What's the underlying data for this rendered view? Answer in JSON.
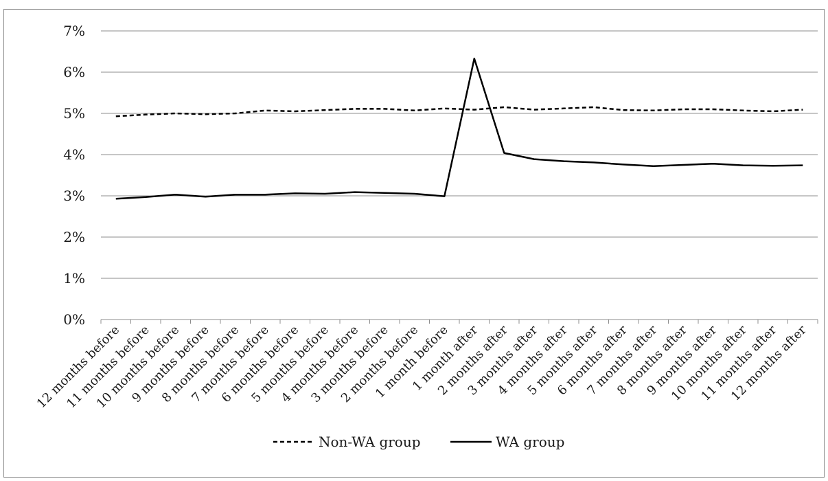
{
  "chart_data": {
    "type": "line",
    "categories": [
      "12 months before",
      "11 months before",
      "10 months before",
      "9 months before",
      "8 months before",
      "7 months before",
      "6 months before",
      "5 months before",
      "4 months before",
      "3 months before",
      "2 months before",
      "1 month before",
      "1 month after",
      "2 months after",
      "3 months after",
      "4 months after",
      "5 months after",
      "6 months after",
      "7 months after",
      "8 months after",
      "9 months after",
      "10 months after",
      "11 months after",
      "12 months after"
    ],
    "series": [
      {
        "name": "Non-WA group",
        "style": "dashed",
        "color": "#000000",
        "values": [
          4.93,
          4.97,
          5.0,
          4.98,
          5.0,
          5.07,
          5.05,
          5.08,
          5.11,
          5.11,
          5.07,
          5.12,
          5.09,
          5.15,
          5.09,
          5.12,
          5.15,
          5.08,
          5.07,
          5.1,
          5.1,
          5.07,
          5.05,
          5.09
        ]
      },
      {
        "name": "WA group",
        "style": "solid",
        "color": "#000000",
        "values": [
          2.93,
          2.97,
          3.03,
          2.98,
          3.03,
          3.03,
          3.06,
          3.05,
          3.09,
          3.07,
          3.05,
          2.99,
          6.33,
          4.04,
          3.89,
          3.84,
          3.81,
          3.76,
          3.72,
          3.75,
          3.78,
          3.74,
          3.73,
          3.74
        ]
      }
    ],
    "y_ticks": [
      "0%",
      "1%",
      "2%",
      "3%",
      "4%",
      "5%",
      "6%",
      "7%"
    ],
    "ylim": [
      0,
      7
    ],
    "y_unit": "%",
    "grid": "horizontal",
    "legend_position": "bottom",
    "title": "",
    "xlabel": "",
    "ylabel": "",
    "colors": {
      "grid": "#8c8c8c",
      "axis": "#8c8c8c",
      "text": "#1a1a1a"
    }
  }
}
